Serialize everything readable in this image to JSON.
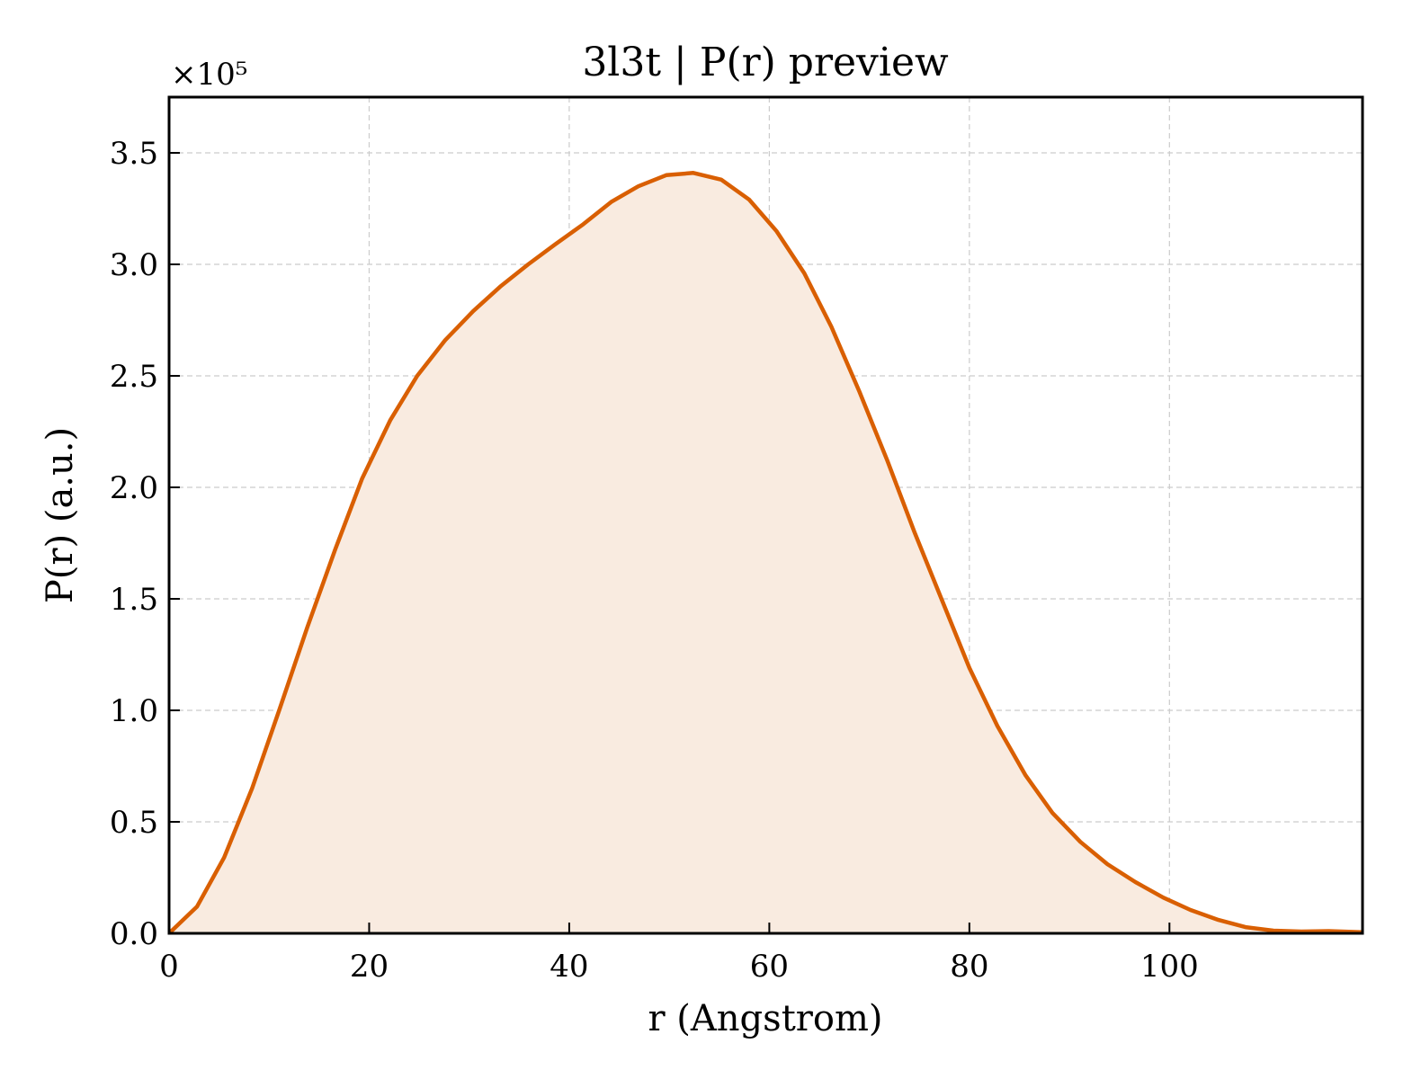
{
  "chart_data": {
    "type": "area",
    "title": "3l3t | P(r) preview",
    "xlabel": "r (Angstrom)",
    "ylabel": "P(r) (a.u.)",
    "y_offset_label": "×10⁵",
    "y_scale": 100000,
    "xlim": [
      0,
      119.3
    ],
    "ylim": [
      0,
      3.75
    ],
    "xticks": [
      0,
      20,
      40,
      60,
      80,
      100
    ],
    "yticks": [
      0.0,
      0.5,
      1.0,
      1.5,
      2.0,
      2.5,
      3.0,
      3.5
    ],
    "xtick_labels": [
      "0",
      "20",
      "40",
      "60",
      "80",
      "100"
    ],
    "ytick_labels": [
      "0.0",
      "0.5",
      "1.0",
      "1.5",
      "2.0",
      "2.5",
      "3.0",
      "3.5"
    ],
    "grid": true,
    "line_color": "#d95f02",
    "fill_color": "#f9ebe0",
    "series": [
      {
        "x": [
          0,
          2.8,
          5.5,
          8.3,
          11.0,
          13.8,
          16.6,
          19.3,
          22.1,
          24.8,
          27.6,
          30.4,
          33.1,
          35.9,
          38.6,
          41.4,
          44.2,
          46.9,
          49.7,
          52.4,
          55.2,
          58.0,
          60.7,
          63.5,
          66.2,
          69.0,
          71.8,
          74.5,
          77.3,
          80.0,
          82.8,
          85.6,
          88.3,
          91.1,
          93.8,
          96.6,
          99.4,
          102.1,
          104.9,
          107.6,
          110.4,
          113.2,
          115.9,
          119.3
        ],
        "y": [
          0.0,
          0.12,
          0.34,
          0.65,
          1.0,
          1.37,
          1.72,
          2.04,
          2.3,
          2.5,
          2.66,
          2.79,
          2.9,
          3.0,
          3.09,
          3.18,
          3.28,
          3.35,
          3.4,
          3.41,
          3.38,
          3.29,
          3.15,
          2.96,
          2.72,
          2.43,
          2.12,
          1.8,
          1.49,
          1.19,
          0.93,
          0.71,
          0.54,
          0.41,
          0.31,
          0.23,
          0.16,
          0.105,
          0.06,
          0.028,
          0.012,
          0.008,
          0.01,
          0.005
        ]
      }
    ]
  }
}
